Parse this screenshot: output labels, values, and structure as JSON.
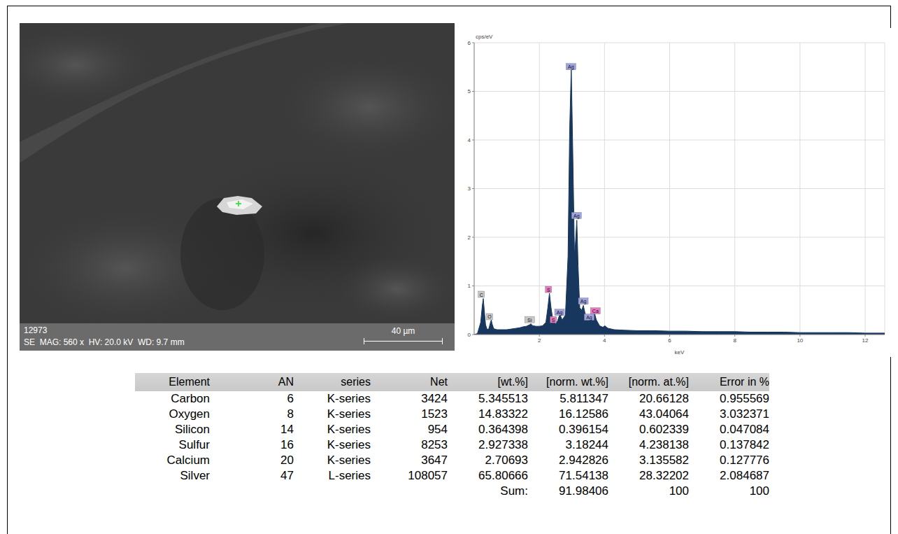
{
  "chart_data": {
    "type": "area",
    "color": "#17375e",
    "x_label": "keV",
    "y_label": "cps/eV",
    "xlim": [
      0,
      12.6
    ],
    "xticks": [
      2,
      4,
      6,
      8,
      10,
      12
    ],
    "ylim": [
      0,
      6
    ],
    "yticks": [
      0,
      1,
      2,
      3,
      4,
      5,
      6
    ],
    "grid": true,
    "x": [
      0,
      0.1,
      0.2,
      0.25,
      0.28,
      0.31,
      0.35,
      0.4,
      0.45,
      0.5,
      0.525,
      0.55,
      0.6,
      0.7,
      0.8,
      0.9,
      1.0,
      1.1,
      1.2,
      1.3,
      1.4,
      1.5,
      1.6,
      1.7,
      1.74,
      1.8,
      1.9,
      2.0,
      2.1,
      2.2,
      2.26,
      2.31,
      2.36,
      2.42,
      2.46,
      2.5,
      2.56,
      2.63,
      2.7,
      2.8,
      2.88,
      2.93,
      2.98,
      3.03,
      3.08,
      3.12,
      3.15,
      3.19,
      3.24,
      3.3,
      3.35,
      3.4,
      3.46,
      3.52,
      3.6,
      3.69,
      3.75,
      3.85,
      3.95,
      4.01,
      4.1,
      4.3,
      4.6,
      5.0,
      5.5,
      6.0,
      6.5,
      7.0,
      7.5,
      8.0,
      8.5,
      9.0,
      9.5,
      10.0,
      10.5,
      11.0,
      11.5,
      12.0,
      12.6
    ],
    "values": [
      0,
      0.02,
      0.25,
      0.6,
      0.74,
      0.5,
      0.2,
      0.1,
      0.12,
      0.25,
      0.3,
      0.22,
      0.12,
      0.1,
      0.1,
      0.1,
      0.1,
      0.11,
      0.12,
      0.13,
      0.14,
      0.16,
      0.17,
      0.2,
      0.22,
      0.18,
      0.17,
      0.17,
      0.18,
      0.25,
      0.55,
      0.85,
      0.55,
      0.28,
      0.25,
      0.22,
      0.28,
      0.42,
      0.3,
      0.4,
      1.6,
      4.2,
      5.5,
      3.6,
      1.6,
      2.0,
      2.35,
      1.4,
      0.55,
      0.5,
      0.6,
      0.45,
      0.32,
      0.33,
      0.35,
      0.45,
      0.3,
      0.18,
      0.15,
      0.18,
      0.13,
      0.1,
      0.09,
      0.08,
      0.08,
      0.07,
      0.07,
      0.06,
      0.06,
      0.06,
      0.05,
      0.05,
      0.05,
      0.04,
      0.04,
      0.04,
      0.04,
      0.03,
      0.03
    ],
    "annotations": [
      {
        "text": "C",
        "x": 0.22,
        "y": 0.82,
        "color": "#c8c8c8"
      },
      {
        "text": "O",
        "x": 0.47,
        "y": 0.36,
        "color": "#c8c8c8"
      },
      {
        "text": "Si",
        "x": 1.7,
        "y": 0.3,
        "color": "#c8c8c8"
      },
      {
        "text": "S",
        "x": 2.28,
        "y": 0.92,
        "color": "#e878c0"
      },
      {
        "text": "S",
        "x": 2.43,
        "y": 0.3,
        "color": "#e878c0"
      },
      {
        "text": "Ag",
        "x": 2.62,
        "y": 0.45,
        "color": "#9ea2e2"
      },
      {
        "text": "Ag",
        "x": 2.97,
        "y": 5.5,
        "color": "#9ea2e2"
      },
      {
        "text": "Ag",
        "x": 3.14,
        "y": 2.44,
        "color": "#9ea2e2"
      },
      {
        "text": "Ag",
        "x": 3.35,
        "y": 0.68,
        "color": "#9ea2e2"
      },
      {
        "text": "Ag",
        "x": 3.53,
        "y": 0.35,
        "color": "#9ea2e2"
      },
      {
        "text": "Ca",
        "x": 3.72,
        "y": 0.48,
        "color": "#e878c0"
      }
    ]
  },
  "image": {
    "id": "12973",
    "info": "SE  MAG: 560 x  HV: 20.0 kV  WD: 9.7 mm",
    "scale_bar": "40 µm"
  },
  "table": {
    "columns": [
      "Element",
      "AN",
      "series",
      "Net",
      "[wt.%]",
      "[norm. wt.%]",
      "[norm. at.%]",
      "Error in %"
    ],
    "rows": [
      [
        "Carbon",
        "6",
        "K-series",
        "3424",
        "5.345513",
        "5.811347",
        "20.66128",
        "0.955569"
      ],
      [
        "Oxygen",
        "8",
        "K-series",
        "1523",
        "14.83322",
        "16.12586",
        "43.04064",
        "3.032371"
      ],
      [
        "Silicon",
        "14",
        "K-series",
        "954",
        "0.364398",
        "0.396154",
        "0.602339",
        "0.047084"
      ],
      [
        "Sulfur",
        "16",
        "K-series",
        "8253",
        "2.927338",
        "3.18244",
        "4.238138",
        "0.137842"
      ],
      [
        "Calcium",
        "20",
        "K-series",
        "3647",
        "2.70693",
        "2.942826",
        "3.135582",
        "0.127776"
      ],
      [
        "Silver",
        "47",
        "L-series",
        "108057",
        "65.80666",
        "71.54138",
        "28.32202",
        "2.084687"
      ]
    ],
    "sum_row": [
      "Sum:",
      "91.98406",
      "100",
      "100"
    ]
  }
}
